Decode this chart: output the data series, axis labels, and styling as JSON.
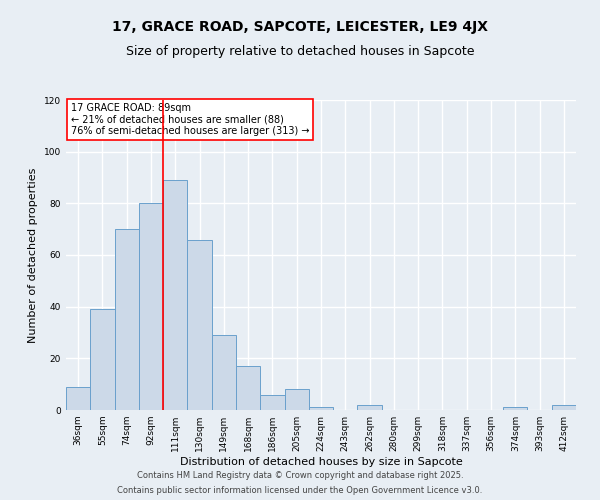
{
  "title": "17, GRACE ROAD, SAPCOTE, LEICESTER, LE9 4JX",
  "subtitle": "Size of property relative to detached houses in Sapcote",
  "xlabel": "Distribution of detached houses by size in Sapcote",
  "ylabel": "Number of detached properties",
  "bar_labels": [
    "36sqm",
    "55sqm",
    "74sqm",
    "92sqm",
    "111sqm",
    "130sqm",
    "149sqm",
    "168sqm",
    "186sqm",
    "205sqm",
    "224sqm",
    "243sqm",
    "262sqm",
    "280sqm",
    "299sqm",
    "318sqm",
    "337sqm",
    "356sqm",
    "374sqm",
    "393sqm",
    "412sqm"
  ],
  "bar_values": [
    9,
    39,
    70,
    80,
    89,
    66,
    29,
    17,
    6,
    8,
    1,
    0,
    2,
    0,
    0,
    0,
    0,
    0,
    1,
    0,
    2
  ],
  "bar_color": "#ccd9e8",
  "bar_edge_color": "#6aa0cc",
  "bar_width": 1.0,
  "vline_x": 3.5,
  "vline_color": "red",
  "ylim": [
    0,
    120
  ],
  "yticks": [
    0,
    20,
    40,
    60,
    80,
    100,
    120
  ],
  "annotation_title": "17 GRACE ROAD: 89sqm",
  "annotation_line1": "← 21% of detached houses are smaller (88)",
  "annotation_line2": "76% of semi-detached houses are larger (313) →",
  "annotation_box_color": "#ffffff",
  "annotation_box_edge": "red",
  "footer_line1": "Contains HM Land Registry data © Crown copyright and database right 2025.",
  "footer_line2": "Contains public sector information licensed under the Open Government Licence v3.0.",
  "background_color": "#e8eef4",
  "plot_bg_color": "#e8eef4",
  "grid_color": "#ffffff",
  "title_fontsize": 10,
  "subtitle_fontsize": 9,
  "axis_label_fontsize": 8,
  "tick_fontsize": 6.5,
  "annotation_fontsize": 7,
  "footer_fontsize": 6
}
